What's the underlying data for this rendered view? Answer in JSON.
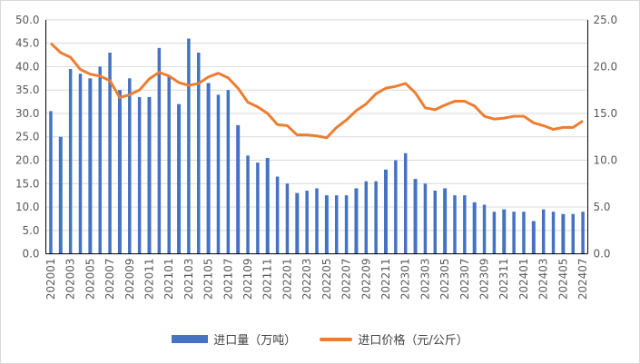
{
  "chart_data": {
    "type": "bar+line",
    "categories": [
      "202001",
      "202002",
      "202003",
      "202004",
      "202005",
      "202006",
      "202007",
      "202008",
      "202009",
      "202010",
      "202011",
      "202012",
      "202101",
      "202102",
      "202103",
      "202104",
      "202105",
      "202106",
      "202107",
      "202108",
      "202109",
      "202110",
      "202111",
      "202112",
      "202201",
      "202202",
      "202203",
      "202204",
      "202205",
      "202206",
      "202207",
      "202208",
      "202209",
      "202210",
      "202211",
      "202212",
      "202301",
      "202302",
      "202303",
      "202304",
      "202305",
      "202306",
      "202307",
      "202308",
      "202309",
      "202310",
      "202311",
      "202312",
      "202401",
      "202402",
      "202403",
      "202404",
      "202405",
      "202406",
      "202407"
    ],
    "series": [
      {
        "name": "进口量（万吨）",
        "type": "bar",
        "axis": "left",
        "color": "#4472c4",
        "values": [
          30.5,
          25,
          39.5,
          38.5,
          37.5,
          40,
          43,
          35,
          37.5,
          33.5,
          33.5,
          44,
          38,
          32,
          46,
          43,
          36.5,
          34,
          35,
          27.5,
          21,
          19.5,
          20.5,
          16.5,
          15,
          13,
          13.5,
          14,
          12.5,
          12.5,
          12.5,
          14,
          15.5,
          15.5,
          18,
          20,
          21.5,
          16,
          15,
          13.5,
          14,
          12.5,
          12.5,
          11,
          10.5,
          9,
          9.5,
          9,
          9,
          7,
          9.5,
          9,
          8.5,
          8.5,
          9
        ]
      },
      {
        "name": "进口价格（元/公斤）",
        "type": "line",
        "axis": "right",
        "color": "#ed7d31",
        "values": [
          22.5,
          21.5,
          21,
          19.7,
          19.2,
          19,
          18.5,
          16.7,
          17,
          17.5,
          18.7,
          19.4,
          19,
          18.3,
          18,
          18.2,
          18.9,
          19.3,
          18.8,
          17.7,
          16.2,
          15.7,
          15,
          13.8,
          13.7,
          12.7,
          12.7,
          12.6,
          12.4,
          13.5,
          14.3,
          15.3,
          16,
          17.1,
          17.7,
          17.9,
          18.2,
          17.2,
          15.6,
          15.4,
          15.9,
          16.3,
          16.3,
          15.8,
          14.7,
          14.4,
          14.5,
          14.7,
          14.7,
          14,
          13.7,
          13.3,
          13.5,
          13.5,
          14.2
        ]
      }
    ],
    "y_left": {
      "ylim": [
        0,
        50
      ],
      "ticks": [
        "0.0",
        "5.0",
        "10.0",
        "15.0",
        "20.0",
        "25.0",
        "30.0",
        "35.0",
        "40.0",
        "45.0",
        "50.0"
      ]
    },
    "y_right": {
      "ylim": [
        0,
        25
      ],
      "ticks": [
        "0.0",
        "5.0",
        "10.0",
        "15.0",
        "20.0",
        "25.0"
      ]
    },
    "x_tick_labels": [
      "202001",
      "202003",
      "202005",
      "202007",
      "202009",
      "202011",
      "202101",
      "202103",
      "202105",
      "202107",
      "202109",
      "202111",
      "202201",
      "202203",
      "202205",
      "202207",
      "202209",
      "202211",
      "202301",
      "202303",
      "202305",
      "202307",
      "202309",
      "202311",
      "202401",
      "202403",
      "202405",
      "202407"
    ],
    "grid": true,
    "legend": "bottom"
  }
}
